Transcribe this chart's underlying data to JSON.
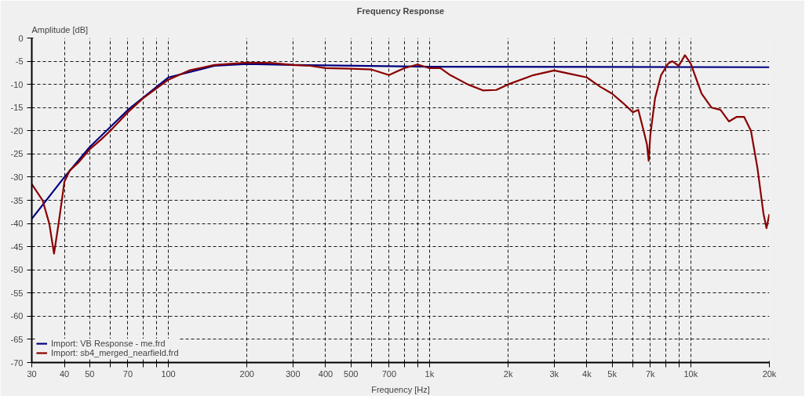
{
  "chart_data": {
    "type": "line",
    "title": "Frequency Response",
    "xlabel": "Frequency [Hz]",
    "ylabel": "Amplitude [dB]",
    "log": "x",
    "grid": true,
    "legend": "bottom left",
    "line_style": "solid",
    "marker": "none",
    "xlim": [
      30,
      20000
    ],
    "ylim": [
      -70,
      0
    ],
    "xticks": [
      30,
      40,
      50,
      {
        "value": 60,
        "label": null
      },
      70,
      {
        "value": 80,
        "label": null
      },
      {
        "value": 90,
        "label": null
      },
      100,
      200,
      300,
      400,
      500,
      {
        "value": 600,
        "label": null
      },
      700,
      {
        "value": 800,
        "label": null
      },
      {
        "value": 900,
        "label": null
      },
      {
        "value": 1000,
        "label": "1k"
      },
      {
        "value": 2000,
        "label": "2k"
      },
      {
        "value": 3000,
        "label": "3k"
      },
      {
        "value": 4000,
        "label": "4k"
      },
      {
        "value": 5000,
        "label": "5k"
      },
      {
        "value": 6000,
        "label": null
      },
      {
        "value": 7000,
        "label": "7k"
      },
      {
        "value": 8000,
        "label": null
      },
      {
        "value": 9000,
        "label": null
      },
      {
        "value": 10000,
        "label": "10k"
      },
      {
        "value": 20000,
        "label": "20k"
      }
    ],
    "yticks": [
      -70,
      -65,
      -60,
      -55,
      -50,
      -45,
      -40,
      -35,
      -30,
      -25,
      -20,
      -15,
      -10,
      -5,
      0
    ],
    "series": [
      {
        "name": "Import: VB Response - me.frd",
        "color": "#000080",
        "x": [
          30,
          40,
          50,
          70,
          100,
          150,
          200,
          300,
          1000,
          20000
        ],
        "values": [
          -39,
          -30,
          -23.5,
          -15.5,
          -8.5,
          -6,
          -5.6,
          -5.8,
          -6.2,
          -6.3
        ]
      },
      {
        "name": "Import: sb4_merged_nearfield.frd",
        "color": "#8b0000",
        "x": [
          30,
          33,
          35,
          36.5,
          38,
          40,
          42,
          45,
          50,
          55,
          60,
          70,
          80,
          100,
          120,
          150,
          200,
          250,
          300,
          350,
          400,
          500,
          600,
          700,
          800,
          900,
          1000,
          1100,
          1200,
          1400,
          1600,
          1800,
          2000,
          2500,
          3000,
          3500,
          4000,
          4500,
          5000,
          5500,
          6000,
          6300,
          6600,
          6800,
          6900,
          7000,
          7300,
          7700,
          8200,
          8500,
          9000,
          9500,
          10000,
          11000,
          12000,
          13000,
          14000,
          15000,
          16000,
          17000,
          18000,
          19000,
          19500,
          20000
        ],
        "values": [
          -31.5,
          -35,
          -40,
          -46.5,
          -40,
          -31,
          -28.5,
          -27,
          -24,
          -22,
          -20,
          -16,
          -13,
          -9,
          -7,
          -5.8,
          -5.3,
          -5.4,
          -5.8,
          -6,
          -6.5,
          -6.6,
          -6.8,
          -8,
          -6.5,
          -5.7,
          -6.5,
          -6.5,
          -8,
          -10,
          -11.3,
          -11.2,
          -10,
          -8,
          -7,
          -7.8,
          -8.5,
          -10.5,
          -12,
          -14,
          -16,
          -15.5,
          -20,
          -23,
          -26.5,
          -21,
          -13,
          -8,
          -5.5,
          -5,
          -6,
          -3.7,
          -5.5,
          -12,
          -15,
          -15.5,
          -18,
          -17,
          -17,
          -20,
          -28,
          -38,
          -41,
          -38
        ]
      }
    ]
  }
}
